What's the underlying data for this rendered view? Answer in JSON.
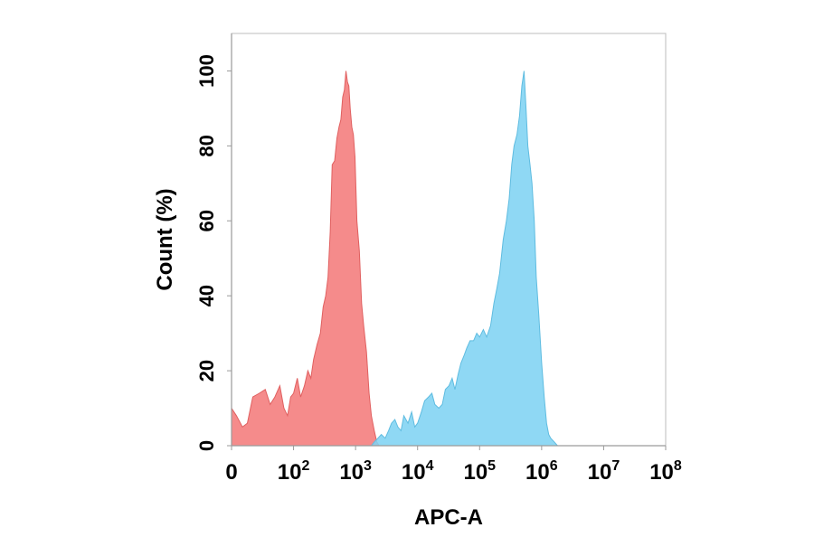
{
  "chart_data": {
    "type": "area",
    "title": "",
    "xlabel": "APC-A",
    "ylabel": "Count  (%)",
    "x_scale": "log",
    "xlim": [
      10,
      100000000
    ],
    "ylim": [
      0,
      110
    ],
    "grid": false,
    "legend": "none",
    "x_ticks": [
      {
        "value": 10,
        "base": "0",
        "exp": ""
      },
      {
        "value": 100,
        "base": "10",
        "exp": "2"
      },
      {
        "value": 1000,
        "base": "10",
        "exp": "3"
      },
      {
        "value": 10000,
        "base": "10",
        "exp": "4"
      },
      {
        "value": 100000,
        "base": "10",
        "exp": "5"
      },
      {
        "value": 1000000,
        "base": "10",
        "exp": "6"
      },
      {
        "value": 10000000,
        "base": "10",
        "exp": "7"
      },
      {
        "value": 100000000,
        "base": "10",
        "exp": "8"
      }
    ],
    "y_ticks": [
      0,
      20,
      40,
      60,
      80,
      100
    ],
    "series": [
      {
        "color": "#f47b7b",
        "stroke": "#e06060",
        "x": [
          10,
          12,
          15,
          18,
          22,
          28,
          35,
          42,
          50,
          60,
          70,
          80,
          90,
          100,
          115,
          130,
          150,
          170,
          190,
          210,
          240,
          270,
          300,
          330,
          360,
          390,
          420,
          460,
          500,
          540,
          580,
          620,
          660,
          700,
          740,
          780,
          820,
          870,
          920,
          980,
          1050,
          1150,
          1250,
          1350,
          1500,
          1650,
          1800,
          2000,
          2200,
          2400
        ],
        "y": [
          10,
          8,
          5,
          6,
          13,
          14,
          15,
          11,
          13,
          16,
          10,
          8,
          13,
          14,
          18,
          13,
          16,
          20,
          18,
          23,
          27,
          30,
          37,
          40,
          45,
          57,
          75,
          76,
          82,
          85,
          87,
          93,
          95,
          100,
          97,
          96,
          90,
          85,
          83,
          77,
          60,
          52,
          38,
          32,
          25,
          14,
          8,
          4,
          1,
          0
        ]
      },
      {
        "color": "#7fd3f3",
        "stroke": "#5fbce0",
        "x": [
          1800,
          2000,
          2300,
          2600,
          3000,
          3400,
          3800,
          4300,
          4800,
          5400,
          6000,
          7000,
          8000,
          9000,
          10000,
          11500,
          13000,
          15000,
          17000,
          19000,
          22000,
          25000,
          28000,
          32000,
          36000,
          40000,
          45000,
          50000,
          56000,
          62000,
          70000,
          80000,
          90000,
          100000,
          115000,
          130000,
          150000,
          170000,
          190000,
          210000,
          240000,
          270000,
          300000,
          330000,
          360000,
          400000,
          440000,
          480000,
          520000,
          560000,
          600000,
          650000,
          700000,
          760000,
          820000,
          900000,
          1000000,
          1100000,
          1200000,
          1300000,
          1400000,
          1600000,
          1800000,
          2000000
        ],
        "y": [
          0,
          1,
          2,
          3,
          2,
          4,
          6,
          7,
          5,
          4,
          8,
          6,
          9,
          5,
          6,
          9,
          12,
          13,
          14,
          11,
          10,
          11,
          15,
          16,
          18,
          15,
          19,
          22,
          24,
          26,
          28,
          28,
          30,
          29,
          31,
          29,
          32,
          38,
          42,
          46,
          55,
          60,
          66,
          75,
          80,
          83,
          88,
          96,
          100,
          90,
          80,
          75,
          70,
          60,
          45,
          35,
          22,
          13,
          6,
          3,
          2,
          1,
          0,
          0
        ]
      }
    ]
  }
}
